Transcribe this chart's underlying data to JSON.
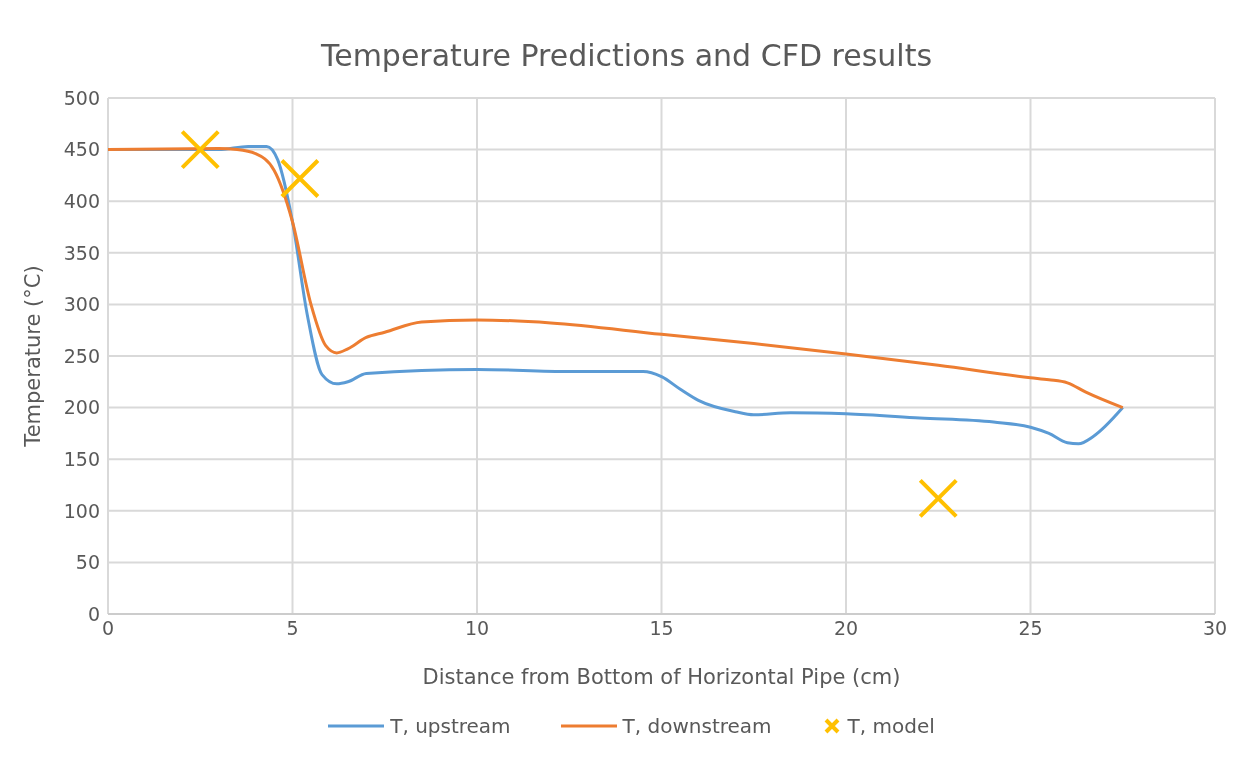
{
  "chart_data": {
    "type": "line",
    "title": "Temperature Predictions and CFD results",
    "xlabel": "Distance from Bottom of Horizontal Pipe (cm)",
    "ylabel": "Temperature (°C)",
    "xlim": [
      0,
      30
    ],
    "xticks": [
      0,
      5,
      10,
      15,
      20,
      25,
      30
    ],
    "ylim": [
      0,
      500
    ],
    "yticks": [
      0,
      50,
      100,
      150,
      200,
      250,
      300,
      350,
      400,
      450,
      500
    ],
    "grid": true,
    "legend": "bottom",
    "series": [
      {
        "name": "T, upstream",
        "color": "#5b9bd5",
        "marker": "none",
        "x": [
          0,
          3,
          3.8,
          4.3,
          4.6,
          5,
          5.4,
          5.8,
          6.2,
          6.5,
          7,
          10,
          12.5,
          14.5,
          15,
          15.5,
          16,
          17,
          17.5,
          18.5,
          20,
          22,
          24,
          25,
          25.5,
          26,
          26.3,
          26.7,
          27.5
        ],
        "values": [
          450,
          450,
          453,
          453,
          440,
          380,
          290,
          232,
          223,
          225,
          233,
          237,
          235,
          235,
          230,
          218,
          207,
          196,
          193,
          195,
          194,
          190,
          186,
          181,
          175,
          166,
          165,
          172,
          200
        ]
      },
      {
        "name": "T, downstream",
        "color": "#ed7d31",
        "marker": "none",
        "x": [
          0,
          3,
          3.5,
          4,
          4.5,
          5,
          5.5,
          5.9,
          6.2,
          6.5,
          7,
          7.5,
          8.5,
          10,
          12,
          15,
          17.5,
          20,
          22.5,
          25,
          25.5,
          26,
          26.5,
          27.5
        ],
        "values": [
          450,
          451,
          450,
          446,
          430,
          380,
          300,
          260,
          253,
          257,
          268,
          273,
          283,
          285,
          282,
          271,
          262,
          252,
          241,
          229,
          227,
          224,
          215,
          200
        ]
      },
      {
        "name": "T, model",
        "color": "#ffc000",
        "type": "scatter",
        "marker": "cross",
        "x": [
          2.5,
          5.2,
          22.5
        ],
        "values": [
          450,
          422,
          112
        ]
      }
    ]
  }
}
